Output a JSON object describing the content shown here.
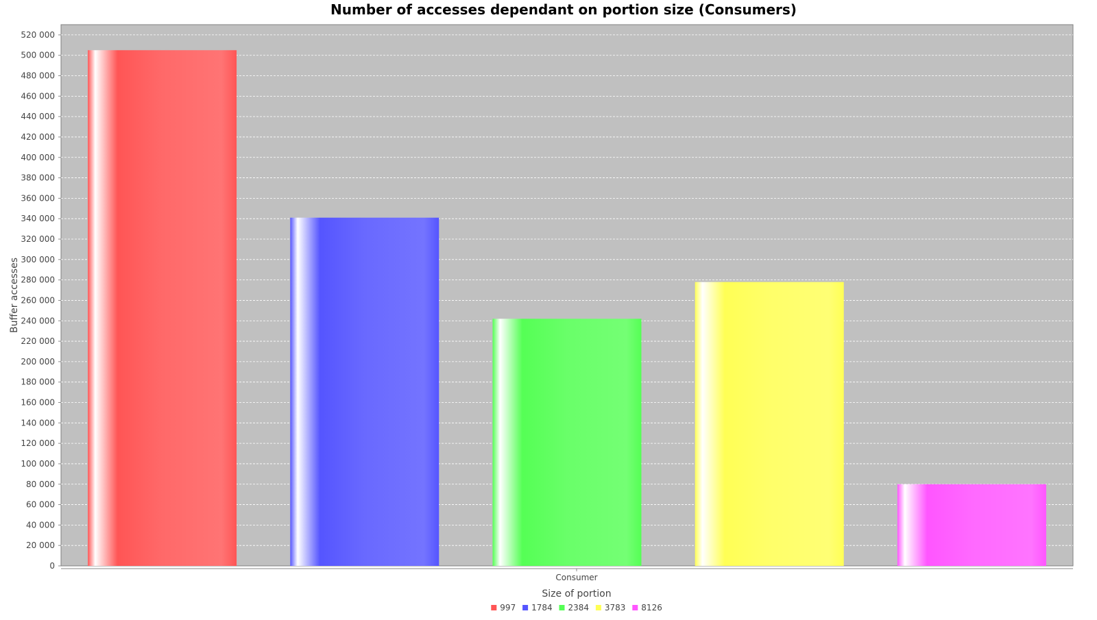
{
  "chart_data": {
    "type": "bar",
    "title": "Number of accesses dependant on portion size (Consumers)",
    "xlabel": "Size of portion",
    "ylabel": "Buffer accesses",
    "categories": [
      "Consumer"
    ],
    "series": [
      {
        "name": "997",
        "values": [
          505000
        ],
        "color": "#ff5555"
      },
      {
        "name": "1784",
        "values": [
          341000
        ],
        "color": "#5555ff"
      },
      {
        "name": "2384",
        "values": [
          242000
        ],
        "color": "#55ff55"
      },
      {
        "name": "3783",
        "values": [
          278000
        ],
        "color": "#ffff55"
      },
      {
        "name": "8126",
        "values": [
          80000
        ],
        "color": "#ff55ff"
      }
    ],
    "ylim": [
      0,
      530000
    ],
    "yticks": [
      0,
      20000,
      40000,
      60000,
      80000,
      100000,
      120000,
      140000,
      160000,
      180000,
      200000,
      220000,
      240000,
      260000,
      280000,
      300000,
      320000,
      340000,
      360000,
      380000,
      400000,
      420000,
      440000,
      460000,
      480000,
      500000,
      520000
    ],
    "ytick_labels": [
      "0",
      "20 000",
      "40 000",
      "60 000",
      "80 000",
      "100 000",
      "120 000",
      "140 000",
      "160 000",
      "180 000",
      "200 000",
      "220 000",
      "240 000",
      "260 000",
      "280 000",
      "300 000",
      "320 000",
      "340 000",
      "360 000",
      "380 000",
      "400 000",
      "420 000",
      "440 000",
      "460 000",
      "480 000",
      "500 000",
      "520 000"
    ],
    "grid": true,
    "legend_position": "bottom-center",
    "plot_background": "#c0c0c0"
  }
}
